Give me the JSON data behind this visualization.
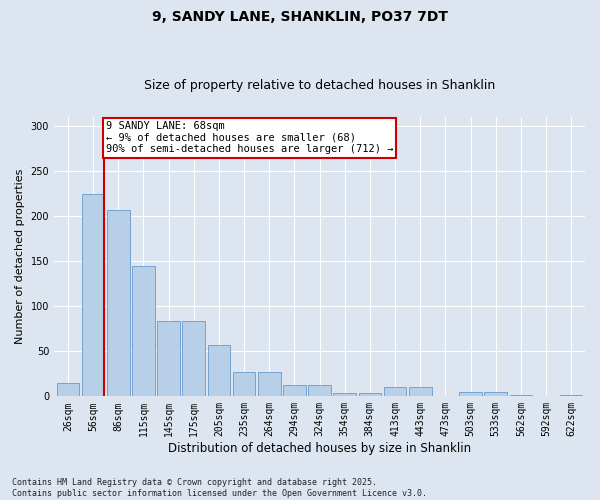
{
  "title1": "9, SANDY LANE, SHANKLIN, PO37 7DT",
  "title2": "Size of property relative to detached houses in Shanklin",
  "xlabel": "Distribution of detached houses by size in Shanklin",
  "ylabel": "Number of detached properties",
  "categories": [
    "26sqm",
    "56sqm",
    "86sqm",
    "115sqm",
    "145sqm",
    "175sqm",
    "205sqm",
    "235sqm",
    "264sqm",
    "294sqm",
    "324sqm",
    "354sqm",
    "384sqm",
    "413sqm",
    "443sqm",
    "473sqm",
    "503sqm",
    "533sqm",
    "562sqm",
    "592sqm",
    "622sqm"
  ],
  "values": [
    15,
    224,
    207,
    145,
    83,
    83,
    57,
    27,
    27,
    13,
    13,
    4,
    4,
    10,
    10,
    0,
    5,
    5,
    1,
    0,
    2
  ],
  "bar_color": "#b8cfe8",
  "bar_edge_color": "#6699cc",
  "vline_color": "#cc0000",
  "annotation_text": "9 SANDY LANE: 68sqm\n← 9% of detached houses are smaller (68)\n90% of semi-detached houses are larger (712) →",
  "annotation_box_facecolor": "#ffffff",
  "annotation_box_edgecolor": "#cc0000",
  "ylim": [
    0,
    310
  ],
  "yticks": [
    0,
    50,
    100,
    150,
    200,
    250,
    300
  ],
  "background_color": "#dde6f0",
  "plot_bg_color": "#dde6f0",
  "footer_text": "Contains HM Land Registry data © Crown copyright and database right 2025.\nContains public sector information licensed under the Open Government Licence v3.0.",
  "title_fontsize": 10,
  "subtitle_fontsize": 9,
  "tick_fontsize": 7,
  "ylabel_fontsize": 8,
  "xlabel_fontsize": 8.5,
  "footer_fontsize": 6,
  "annotation_fontsize": 7.5
}
